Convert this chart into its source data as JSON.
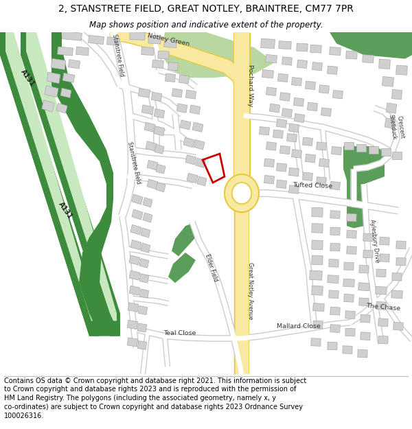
{
  "title": "2, STANSTRETE FIELD, GREAT NOTLEY, BRAINTREE, CM77 7PR",
  "subtitle": "Map shows position and indicative extent of the property.",
  "footer_lines": [
    "Contains OS data © Crown copyright and database right 2021. This information is subject",
    "to Crown copyright and database rights 2023 and is reproduced with the permission of",
    "HM Land Registry. The polygons (including the associated geometry, namely x, y",
    "co-ordinates) are subject to Crown copyright and database rights 2023 Ordnance Survey",
    "100026316."
  ],
  "bg_color": "#ffffff",
  "map_bg": "#f5f3ee",
  "road_major_fill": "#f7e9a0",
  "road_major_outline": "#e8c840",
  "road_minor_fill": "#ffffff",
  "road_minor_outline": "#cccccc",
  "green_dark": "#5a9e5a",
  "green_light": "#c8e8c0",
  "green_park": "#b8d8a0",
  "green_strip": "#3d8c3d",
  "building_fill": "#d0d0d0",
  "building_outline": "#aaaaaa",
  "highlight_color": "#cc0000",
  "label_color": "#333333",
  "title_fontsize": 10,
  "subtitle_fontsize": 8.5,
  "footer_fontsize": 7.0
}
